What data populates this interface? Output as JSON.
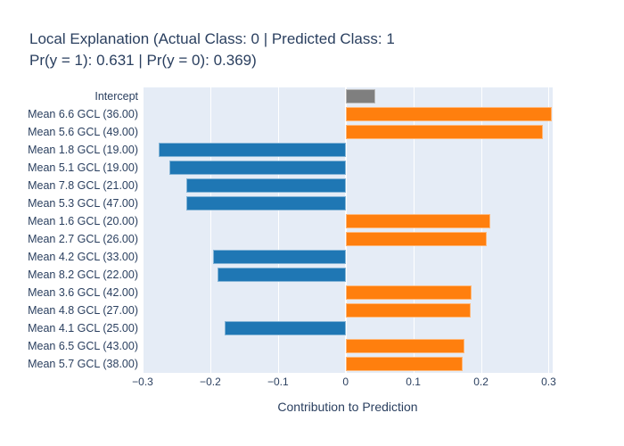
{
  "title": {
    "line1": "Local Explanation (Actual Class: 0 | Predicted Class: 1",
    "line2": "Pr(y = 1): 0.631 | Pr(y = 0): 0.369)"
  },
  "colors": {
    "positive": "#ff7f0e",
    "negative": "#1f77b4",
    "intercept": "#7f7f7f",
    "plot_bg": "#e5ecf6",
    "grid": "#ffffff",
    "text": "#2a3f5f"
  },
  "chart_data": {
    "type": "bar",
    "orientation": "horizontal",
    "title": "Local Explanation (Actual Class: 0 | Predicted Class: 1 Pr(y = 1): 0.631 | Pr(y = 0): 0.369)",
    "xlabel": "Contribution to Prediction",
    "ylabel": "",
    "xlim": [
      -0.3,
      0.306
    ],
    "xticks": [
      -0.3,
      -0.2,
      -0.1,
      0,
      0.1,
      0.2,
      0.3
    ],
    "xtick_labels": [
      "−0.3",
      "−0.2",
      "−0.1",
      "0",
      "0.1",
      "0.2",
      "0.3"
    ],
    "grid": true,
    "legend": false,
    "rows": [
      {
        "label": "Intercept",
        "value": 0.044,
        "series": "intercept"
      },
      {
        "label": "Mean 6.6 GCL (36.00)",
        "value": 0.305,
        "series": "positive"
      },
      {
        "label": "Mean 5.6 GCL (49.00)",
        "value": 0.292,
        "series": "positive"
      },
      {
        "label": "Mean 1.8 GCL (19.00)",
        "value": -0.276,
        "series": "negative"
      },
      {
        "label": "Mean 5.1 GCL (19.00)",
        "value": -0.26,
        "series": "negative"
      },
      {
        "label": "Mean 7.8 GCL (21.00)",
        "value": -0.236,
        "series": "negative"
      },
      {
        "label": "Mean 5.3 GCL (47.00)",
        "value": -0.235,
        "series": "negative"
      },
      {
        "label": "Mean 1.6 GCL (20.00)",
        "value": 0.214,
        "series": "positive"
      },
      {
        "label": "Mean 2.7 GCL (26.00)",
        "value": 0.209,
        "series": "positive"
      },
      {
        "label": "Mean 4.2 GCL (33.00)",
        "value": -0.196,
        "series": "negative"
      },
      {
        "label": "Mean 8.2 GCL (22.00)",
        "value": -0.189,
        "series": "negative"
      },
      {
        "label": "Mean 3.6 GCL (42.00)",
        "value": 0.186,
        "series": "positive"
      },
      {
        "label": "Mean 4.8 GCL (27.00)",
        "value": 0.185,
        "series": "positive"
      },
      {
        "label": "Mean 4.1 GCL (25.00)",
        "value": -0.179,
        "series": "negative"
      },
      {
        "label": "Mean 6.5 GCL (43.00)",
        "value": 0.175,
        "series": "positive"
      },
      {
        "label": "Mean 5.7 GCL (38.00)",
        "value": 0.173,
        "series": "positive"
      }
    ]
  }
}
